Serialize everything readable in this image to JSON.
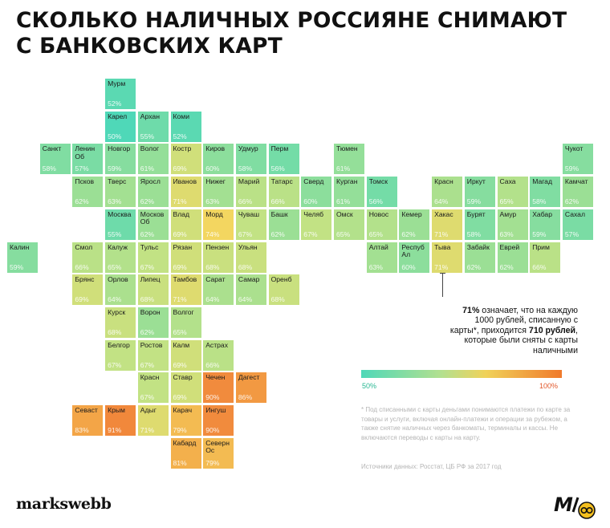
{
  "title": {
    "line1": "СКОЛЬКО НАЛИЧНЫХ РОССИЯНЕ СНИМАЮТ",
    "line2": "С БАНКОВСКИХ КАРТ"
  },
  "legend": {
    "min_label": "50%",
    "max_label": "100%",
    "min_value": 50,
    "max_value": 100
  },
  "note": {
    "value_bold": "71%",
    "text1": " означает, что на каждую 1000 рублей, списанную с карты*, приходится ",
    "amount_bold": "710 рублей",
    "text2": ", которые были сняты с карты наличными"
  },
  "footnote": "* Под списанными с карты деньгами понимаются платежи по карте за товары и услуги, включая онлайн-платежи и операции за рубежом, а также снятие наличных через банкоматы, терминалы и кассы. Не включаются переводы с карты на карту.",
  "source": "Источники данных: Росстат, ЦБ РФ за 2017 год",
  "brand": {
    "logo": "markswebb",
    "badge_icon": "mw-eye-badge-icon"
  },
  "map_data": {
    "unit": "%",
    "regions": [
      {
        "name": "Мурм",
        "value": 52,
        "col": 3,
        "row": 0
      },
      {
        "name": "Карел",
        "value": 50,
        "col": 3,
        "row": 1
      },
      {
        "name": "Архан",
        "value": 55,
        "col": 4,
        "row": 1
      },
      {
        "name": "Коми",
        "value": 52,
        "col": 5,
        "row": 1
      },
      {
        "name": "Санкт",
        "value": 58,
        "col": 1,
        "row": 2
      },
      {
        "name": "Ленин Об",
        "value": 57,
        "col": 2,
        "row": 2
      },
      {
        "name": "Новгор",
        "value": 59,
        "col": 3,
        "row": 2
      },
      {
        "name": "Волог",
        "value": 61,
        "col": 4,
        "row": 2
      },
      {
        "name": "Костр",
        "value": 69,
        "col": 5,
        "row": 2
      },
      {
        "name": "Киров",
        "value": 60,
        "col": 6,
        "row": 2
      },
      {
        "name": "Удмур",
        "value": 58,
        "col": 7,
        "row": 2
      },
      {
        "name": "Перм",
        "value": 56,
        "col": 8,
        "row": 2
      },
      {
        "name": "Тюмен",
        "value": 61,
        "col": 10,
        "row": 2
      },
      {
        "name": "Чукот",
        "value": 59,
        "col": 17,
        "row": 2
      },
      {
        "name": "Псков",
        "value": 62,
        "col": 2,
        "row": 3
      },
      {
        "name": "Тверс",
        "value": 63,
        "col": 3,
        "row": 3
      },
      {
        "name": "Яросл",
        "value": 62,
        "col": 4,
        "row": 3
      },
      {
        "name": "Иванов",
        "value": 71,
        "col": 5,
        "row": 3
      },
      {
        "name": "Нижег",
        "value": 63,
        "col": 6,
        "row": 3
      },
      {
        "name": "Марий",
        "value": 66,
        "col": 7,
        "row": 3
      },
      {
        "name": "Татарс",
        "value": 66,
        "col": 8,
        "row": 3
      },
      {
        "name": "Сверд",
        "value": 60,
        "col": 9,
        "row": 3
      },
      {
        "name": "Курган",
        "value": 61,
        "col": 10,
        "row": 3
      },
      {
        "name": "Томск",
        "value": 56,
        "col": 11,
        "row": 3
      },
      {
        "name": "Красн",
        "value": 64,
        "col": 13,
        "row": 3
      },
      {
        "name": "Иркут",
        "value": 59,
        "col": 14,
        "row": 3
      },
      {
        "name": "Саха",
        "value": 65,
        "col": 15,
        "row": 3
      },
      {
        "name": "Магад",
        "value": 58,
        "col": 16,
        "row": 3
      },
      {
        "name": "Камчат",
        "value": 62,
        "col": 17,
        "row": 3
      },
      {
        "name": "Москва",
        "value": 55,
        "col": 3,
        "row": 4
      },
      {
        "name": "Москов Об",
        "value": 62,
        "col": 4,
        "row": 4
      },
      {
        "name": "Влад",
        "value": 69,
        "col": 5,
        "row": 4
      },
      {
        "name": "Морд",
        "value": 74,
        "col": 6,
        "row": 4
      },
      {
        "name": "Чуваш",
        "value": 67,
        "col": 7,
        "row": 4
      },
      {
        "name": "Башк",
        "value": 62,
        "col": 8,
        "row": 4
      },
      {
        "name": "Челяб",
        "value": 67,
        "col": 9,
        "row": 4
      },
      {
        "name": "Омск",
        "value": 65,
        "col": 10,
        "row": 4
      },
      {
        "name": "Новос",
        "value": 65,
        "col": 11,
        "row": 4
      },
      {
        "name": "Кемер",
        "value": 62,
        "col": 12,
        "row": 4
      },
      {
        "name": "Хакас",
        "value": 71,
        "col": 13,
        "row": 4
      },
      {
        "name": "Бурят",
        "value": 58,
        "col": 14,
        "row": 4
      },
      {
        "name": "Амур",
        "value": 63,
        "col": 15,
        "row": 4
      },
      {
        "name": "Хабар",
        "value": 59,
        "col": 16,
        "row": 4
      },
      {
        "name": "Сахал",
        "value": 57,
        "col": 17,
        "row": 4
      },
      {
        "name": "Калин",
        "value": 59,
        "col": 0,
        "row": 5
      },
      {
        "name": "Смол",
        "value": 66,
        "col": 2,
        "row": 5
      },
      {
        "name": "Калуж",
        "value": 65,
        "col": 3,
        "row": 5
      },
      {
        "name": "Тульс",
        "value": 67,
        "col": 4,
        "row": 5
      },
      {
        "name": "Рязан",
        "value": 69,
        "col": 5,
        "row": 5
      },
      {
        "name": "Пензен",
        "value": 68,
        "col": 6,
        "row": 5
      },
      {
        "name": "Ульян",
        "value": 68,
        "col": 7,
        "row": 5
      },
      {
        "name": "Алтай",
        "value": 63,
        "col": 11,
        "row": 5
      },
      {
        "name": "Респуб Ал",
        "value": 60,
        "col": 12,
        "row": 5
      },
      {
        "name": "Тыва",
        "value": 71,
        "col": 13,
        "row": 5
      },
      {
        "name": "Забайк",
        "value": 62,
        "col": 14,
        "row": 5
      },
      {
        "name": "Еврей",
        "value": 62,
        "col": 15,
        "row": 5
      },
      {
        "name": "Прим",
        "value": 66,
        "col": 16,
        "row": 5
      },
      {
        "name": "Брянс",
        "value": 69,
        "col": 2,
        "row": 6
      },
      {
        "name": "Орлов",
        "value": 64,
        "col": 3,
        "row": 6
      },
      {
        "name": "Липец",
        "value": 68,
        "col": 4,
        "row": 6
      },
      {
        "name": "Тамбов",
        "value": 71,
        "col": 5,
        "row": 6
      },
      {
        "name": "Сарат",
        "value": 64,
        "col": 6,
        "row": 6
      },
      {
        "name": "Самар",
        "value": 64,
        "col": 7,
        "row": 6
      },
      {
        "name": "Оренб",
        "value": 68,
        "col": 8,
        "row": 6
      },
      {
        "name": "Курск",
        "value": 68,
        "col": 3,
        "row": 7
      },
      {
        "name": "Ворон",
        "value": 62,
        "col": 4,
        "row": 7
      },
      {
        "name": "Волгог",
        "value": 65,
        "col": 5,
        "row": 7
      },
      {
        "name": "Белгор",
        "value": 67,
        "col": 3,
        "row": 8
      },
      {
        "name": "Ростов",
        "value": 67,
        "col": 4,
        "row": 8
      },
      {
        "name": "Калм",
        "value": 69,
        "col": 5,
        "row": 8
      },
      {
        "name": "Астрах",
        "value": 66,
        "col": 6,
        "row": 8
      },
      {
        "name": "Красн",
        "value": 67,
        "col": 4,
        "row": 9
      },
      {
        "name": "Ставр",
        "value": 69,
        "col": 5,
        "row": 9
      },
      {
        "name": "Чечен",
        "value": 90,
        "col": 6,
        "row": 9
      },
      {
        "name": "Дагест",
        "value": 86,
        "col": 7,
        "row": 9
      },
      {
        "name": "Севаст",
        "value": 83,
        "col": 2,
        "row": 10
      },
      {
        "name": "Крым",
        "value": 91,
        "col": 3,
        "row": 10
      },
      {
        "name": "Адыг",
        "value": 71,
        "col": 4,
        "row": 10
      },
      {
        "name": "Карач",
        "value": 79,
        "col": 5,
        "row": 10
      },
      {
        "name": "Ингуш",
        "value": 90,
        "col": 6,
        "row": 10
      },
      {
        "name": "Кабард",
        "value": 81,
        "col": 5,
        "row": 11
      },
      {
        "name": "Северн Ос",
        "value": 79,
        "col": 6,
        "row": 11
      }
    ]
  }
}
